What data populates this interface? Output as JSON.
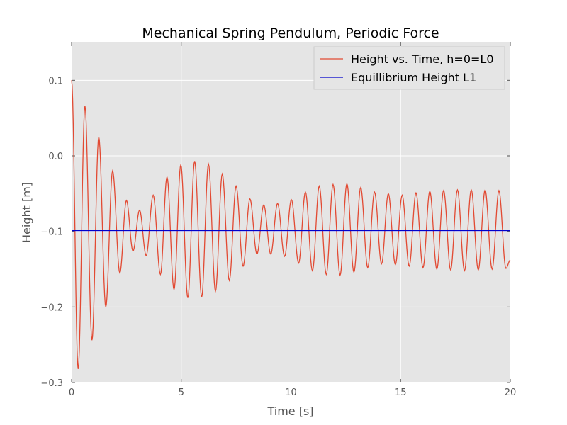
{
  "chart_data": {
    "type": "line",
    "title": "Mechanical Spring Pendulum, Periodic Force",
    "xlabel": "Time [s]",
    "ylabel": "Height [m]",
    "xlim": [
      0,
      20
    ],
    "ylim": [
      -0.3,
      0.15
    ],
    "xticks": [
      0,
      5,
      10,
      15,
      20
    ],
    "xtick_labels": [
      "0",
      "5",
      "10",
      "15",
      "20"
    ],
    "yticks": [
      -0.3,
      -0.2,
      -0.1,
      0.0,
      0.1
    ],
    "ytick_labels": [
      "−0.3",
      "−0.2",
      "−0.1",
      "0.0",
      "0.1"
    ],
    "grid": true,
    "legend_position": "top-right",
    "colors": {
      "height": "#e24a33",
      "equilibrium": "#0000cc",
      "background": "#e5e5e5",
      "grid": "#ffffff"
    },
    "series": [
      {
        "name": "Height vs. Time, h=0=L0",
        "extrema": [
          [
            0,
            0.1
          ],
          [
            0.3,
            -0.282
          ],
          [
            0.61,
            0.066
          ],
          [
            0.93,
            -0.244
          ],
          [
            1.24,
            0.025
          ],
          [
            1.56,
            -0.2
          ],
          [
            1.87,
            -0.02
          ],
          [
            2.2,
            -0.155
          ],
          [
            2.5,
            -0.059
          ],
          [
            2.8,
            -0.126
          ],
          [
            3.1,
            -0.072
          ],
          [
            3.4,
            -0.132
          ],
          [
            3.72,
            -0.052
          ],
          [
            4.05,
            -0.157
          ],
          [
            4.35,
            -0.028
          ],
          [
            4.67,
            -0.177
          ],
          [
            4.98,
            -0.012
          ],
          [
            5.3,
            -0.188
          ],
          [
            5.61,
            -0.007
          ],
          [
            5.93,
            -0.187
          ],
          [
            6.24,
            -0.011
          ],
          [
            6.56,
            -0.179
          ],
          [
            6.87,
            -0.024
          ],
          [
            7.19,
            -0.165
          ],
          [
            7.5,
            -0.04
          ],
          [
            7.82,
            -0.146
          ],
          [
            8.13,
            -0.057
          ],
          [
            8.45,
            -0.13
          ],
          [
            8.76,
            -0.065
          ],
          [
            9.08,
            -0.13
          ],
          [
            9.39,
            -0.063
          ],
          [
            9.71,
            -0.133
          ],
          [
            10.02,
            -0.058
          ],
          [
            10.35,
            -0.142
          ],
          [
            10.66,
            -0.048
          ],
          [
            10.98,
            -0.152
          ],
          [
            11.29,
            -0.04
          ],
          [
            11.61,
            -0.157
          ],
          [
            11.92,
            -0.038
          ],
          [
            12.24,
            -0.158
          ],
          [
            12.55,
            -0.037
          ],
          [
            12.87,
            -0.154
          ],
          [
            13.18,
            -0.042
          ],
          [
            13.5,
            -0.148
          ],
          [
            13.81,
            -0.048
          ],
          [
            14.13,
            -0.143
          ],
          [
            14.44,
            -0.05
          ],
          [
            14.76,
            -0.144
          ],
          [
            15.07,
            -0.052
          ],
          [
            15.39,
            -0.146
          ],
          [
            15.7,
            -0.049
          ],
          [
            16.02,
            -0.148
          ],
          [
            16.33,
            -0.047
          ],
          [
            16.65,
            -0.15
          ],
          [
            16.96,
            -0.046
          ],
          [
            17.28,
            -0.151
          ],
          [
            17.59,
            -0.045
          ],
          [
            17.91,
            -0.152
          ],
          [
            18.22,
            -0.045
          ],
          [
            18.54,
            -0.151
          ],
          [
            18.85,
            -0.045
          ],
          [
            19.17,
            -0.15
          ],
          [
            19.48,
            -0.046
          ],
          [
            19.8,
            -0.149
          ],
          [
            20,
            -0.138
          ]
        ]
      },
      {
        "name": "Equillibrium Height L1",
        "x": [
          0,
          20
        ],
        "y": [
          -0.099,
          -0.099
        ]
      }
    ]
  }
}
